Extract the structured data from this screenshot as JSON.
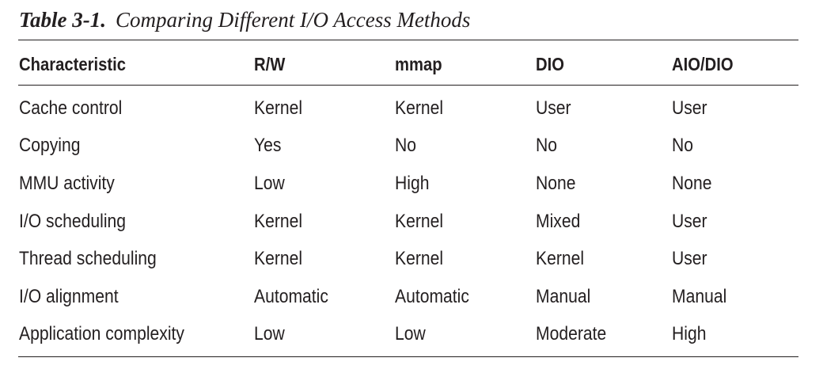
{
  "caption": {
    "label": "Table 3-1.",
    "title": "Comparing Different I/O Access Methods"
  },
  "table": {
    "headers": [
      "Characteristic",
      "R/W",
      "mmap",
      "DIO",
      "AIO/DIO"
    ],
    "rows": [
      [
        "Cache control",
        "Kernel",
        "Kernel",
        "User",
        "User"
      ],
      [
        "Copying",
        "Yes",
        "No",
        "No",
        "No"
      ],
      [
        "MMU activity",
        "Low",
        "High",
        "None",
        "None"
      ],
      [
        "I/O scheduling",
        "Kernel",
        "Kernel",
        "Mixed",
        "User"
      ],
      [
        "Thread scheduling",
        "Kernel",
        "Kernel",
        "Kernel",
        "User"
      ],
      [
        "I/O alignment",
        "Automatic",
        "Automatic",
        "Manual",
        "Manual"
      ],
      [
        "Application complexity",
        "Low",
        "Low",
        "Moderate",
        "High"
      ]
    ]
  }
}
